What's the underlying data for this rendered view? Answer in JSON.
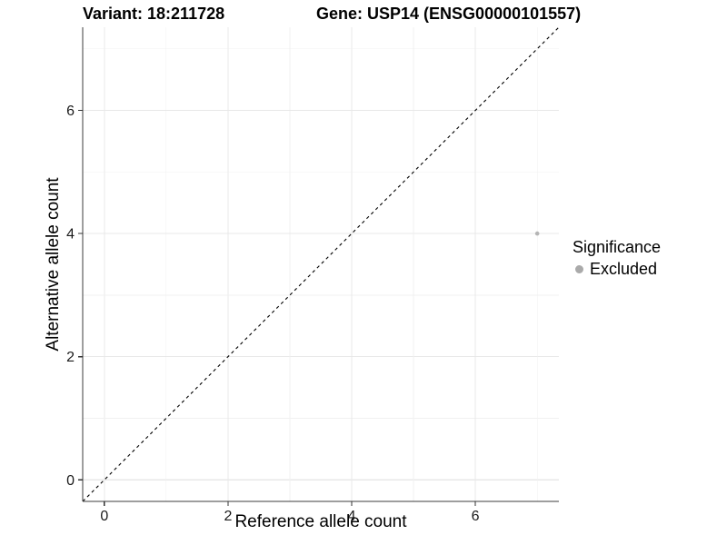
{
  "figure": {
    "title_left": "Variant: 18:211728",
    "title_right": "Gene: USP14 (ENSG00000101557)"
  },
  "chart_data": {
    "type": "scatter",
    "xlabel": "Reference allele count",
    "ylabel": "Alternative allele count",
    "xlim": [
      -0.35,
      7.35
    ],
    "ylim": [
      -0.35,
      7.35
    ],
    "major_ticks": [
      0,
      2,
      4,
      6
    ],
    "gridlines": [
      0,
      1,
      2,
      3,
      4,
      5,
      6,
      7
    ],
    "grid": {
      "major_color": "#e8e8e8",
      "minor_color": "#f1f1f1",
      "on": true
    },
    "axis_color": "#3c3c3c",
    "reference_line": {
      "type": "identity",
      "style": "dashed",
      "color": "#000000",
      "from": [
        -0.35,
        -0.35
      ],
      "to": [
        7.35,
        7.35
      ]
    },
    "series": [
      {
        "name": "Excluded",
        "color": "#b5b5b5",
        "points": [
          {
            "x": 7,
            "y": 4
          }
        ]
      }
    ],
    "legend": {
      "title": "Significance",
      "position": "right",
      "items": [
        {
          "label": "Excluded",
          "color": "#aaaaaa"
        }
      ]
    }
  }
}
